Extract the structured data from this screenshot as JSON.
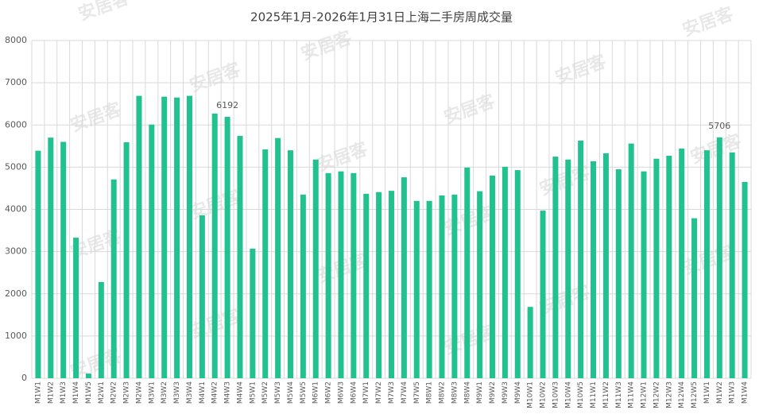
{
  "chart_data": {
    "type": "bar",
    "title": "2025年1月-2026年1月31日上海二手房周成交量",
    "watermark": "安居客",
    "categories": [
      "M1W1",
      "M1W2",
      "M1W3",
      "M1W4",
      "M1W5",
      "M2W1",
      "M2W2",
      "M2W3",
      "M2W4",
      "M3W1",
      "M3W2",
      "M3W3",
      "M3W4",
      "M4W1",
      "M4W2",
      "M4W3",
      "M4W4",
      "M5W1",
      "M5W2",
      "M5W3",
      "M5W4",
      "M5W5",
      "M6W1",
      "M6W2",
      "M6W3",
      "M6W4",
      "M7W1",
      "M7W2",
      "M7W3",
      "M7W4",
      "M7W5",
      "M8W1",
      "M8W2",
      "M8W3",
      "M8W4",
      "M9W1",
      "M9W2",
      "M9W3",
      "M9W4",
      "M10W1",
      "M10W2",
      "M10W3",
      "M10W4",
      "M10W5",
      "M11W1",
      "M11W2",
      "M11W3",
      "M11W4",
      "M12W1",
      "M12W2",
      "M12W3",
      "M12W4",
      "M12W5",
      "M1W1",
      "M1W2",
      "M1W3",
      "M1W4"
    ],
    "values": [
      5390,
      5700,
      5600,
      3330,
      110,
      2280,
      4710,
      5590,
      6690,
      6010,
      6670,
      6650,
      6690,
      3860,
      6270,
      6192,
      5740,
      3070,
      5420,
      5690,
      5400,
      4350,
      5180,
      4860,
      4900,
      4860,
      4370,
      4410,
      4440,
      4760,
      4200,
      4200,
      4330,
      4350,
      4990,
      4430,
      4800,
      5010,
      4930,
      1690,
      3970,
      5250,
      5180,
      5630,
      5140,
      5330,
      4950,
      5560,
      4900,
      5200,
      5270,
      5440,
      3790,
      5400,
      5706,
      5350,
      4650
    ],
    "labeled_indices": [
      15,
      54
    ],
    "color": "#21c190",
    "ylim": [
      0,
      8000
    ],
    "yticks": [
      0,
      1000,
      2000,
      3000,
      4000,
      5000,
      6000,
      7000,
      8000
    ],
    "grid": true
  }
}
